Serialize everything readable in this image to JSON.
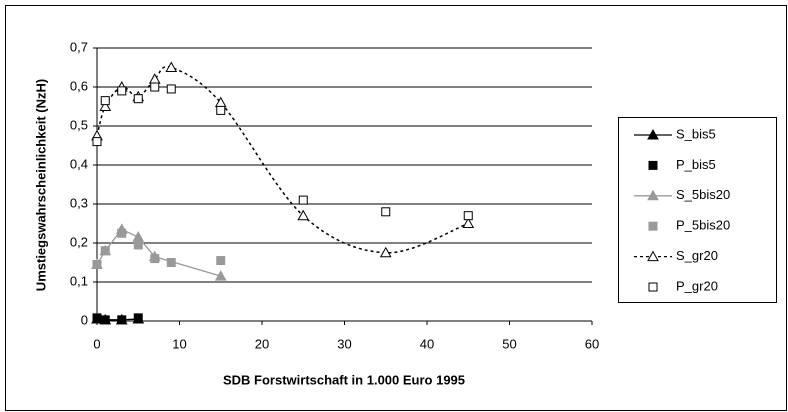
{
  "chart_data": {
    "type": "scatter",
    "xlabel": "SDB Forstwirtschaft in 1.000 Euro 1995",
    "ylabel": "Umstiegswahrscheinlichkeit (NzH)",
    "xlim": [
      0,
      60
    ],
    "xticks": [
      0,
      10,
      20,
      30,
      40,
      50,
      60
    ],
    "ylim": [
      0,
      0.7
    ],
    "yticks": [
      0,
      {
        "value": 0.1,
        "label": "0,1"
      },
      {
        "value": 0.2,
        "label": "0,2"
      },
      {
        "value": 0.3,
        "label": "0,3"
      },
      {
        "value": 0.4,
        "label": "0,4"
      },
      {
        "value": 0.5,
        "label": "0,5"
      },
      {
        "value": 0.6,
        "label": "0,6"
      },
      {
        "value": 0.7,
        "label": "0,7"
      }
    ],
    "grid": true,
    "legend": "right",
    "series": [
      {
        "name": "S_bis5",
        "color": "#000000",
        "marker": "triangle",
        "filled": true,
        "line": "solid",
        "x": [
          0,
          1,
          3,
          5
        ],
        "values": [
          0.005,
          0.003,
          0.003,
          0.005
        ]
      },
      {
        "name": "P_bis5",
        "color": "#000000",
        "marker": "square",
        "filled": true,
        "line": "none",
        "x": [
          0,
          1,
          3,
          5
        ],
        "values": [
          0.008,
          0.003,
          0.003,
          0.008
        ]
      },
      {
        "name": "S_5bis20",
        "color": "#999999",
        "marker": "triangle",
        "filled": true,
        "line": "solid",
        "x": [
          0,
          1,
          3,
          5,
          7,
          15
        ],
        "values": [
          0.145,
          0.18,
          0.235,
          0.215,
          0.165,
          0.115
        ]
      },
      {
        "name": "P_5bis20",
        "color": "#999999",
        "marker": "square",
        "filled": true,
        "line": "none",
        "x": [
          0,
          1,
          3,
          5,
          7,
          9,
          15
        ],
        "values": [
          0.145,
          0.18,
          0.225,
          0.195,
          0.16,
          0.15,
          0.155
        ]
      },
      {
        "name": "S_gr20",
        "color": "#000000",
        "marker": "triangle",
        "filled": false,
        "line": "dashed",
        "x": [
          0,
          1,
          3,
          5,
          7,
          9,
          15,
          25,
          35,
          45
        ],
        "values": [
          0.475,
          0.55,
          0.6,
          0.575,
          0.62,
          0.65,
          0.56,
          0.27,
          0.175,
          0.25
        ]
      },
      {
        "name": "P_gr20",
        "color": "#000000",
        "marker": "square",
        "filled": false,
        "line": "none",
        "x": [
          0,
          1,
          3,
          5,
          7,
          9,
          15,
          25,
          35,
          45
        ],
        "values": [
          0.46,
          0.565,
          0.59,
          0.57,
          0.6,
          0.595,
          0.54,
          0.31,
          0.28,
          0.27
        ]
      }
    ]
  }
}
